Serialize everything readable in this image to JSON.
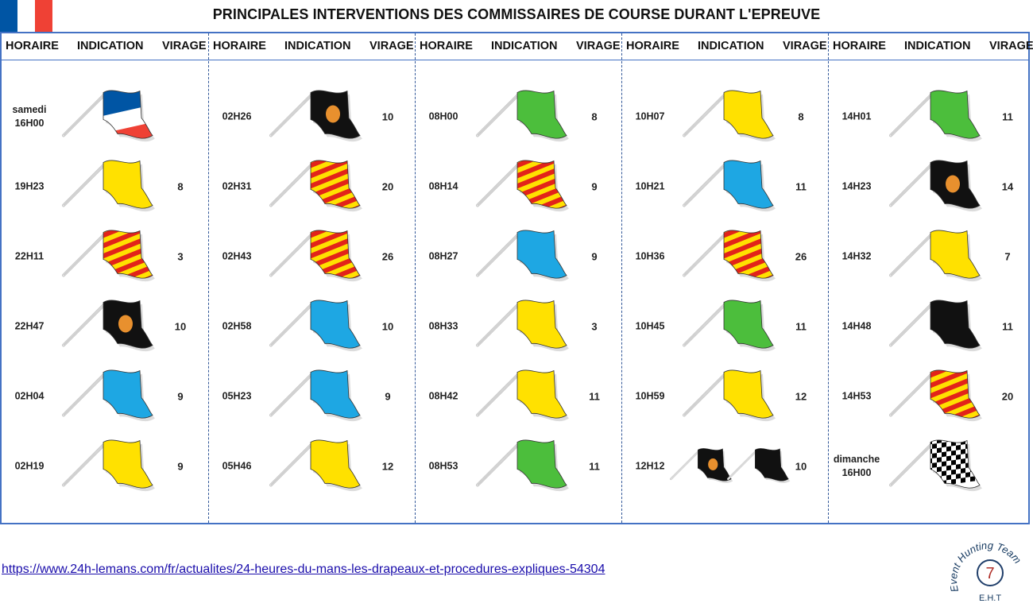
{
  "title": "PRINCIPALES INTERVENTIONS DES COMMISSAIRES DE COURSE DURANT L'EPREUVE",
  "headers": {
    "time": "HORAIRE",
    "indication": "INDICATION",
    "turn": "VIRAGE"
  },
  "columns": [
    {
      "rows": [
        {
          "time": "samedi\n16H00",
          "flags": [
            "french"
          ],
          "turn": ""
        },
        {
          "time": "19H23",
          "flags": [
            "yellow"
          ],
          "turn": "8"
        },
        {
          "time": "22H11",
          "flags": [
            "red-yellow-stripes"
          ],
          "turn": "3"
        },
        {
          "time": "22H47",
          "flags": [
            "black-orange-disc"
          ],
          "turn": "10"
        },
        {
          "time": "02H04",
          "flags": [
            "blue"
          ],
          "turn": "9"
        },
        {
          "time": "02H19",
          "flags": [
            "yellow"
          ],
          "turn": "9"
        }
      ]
    },
    {
      "rows": [
        {
          "time": "02H26",
          "flags": [
            "black-orange-disc"
          ],
          "turn": "10"
        },
        {
          "time": "02H31",
          "flags": [
            "red-yellow-stripes"
          ],
          "turn": "20"
        },
        {
          "time": "02H43",
          "flags": [
            "red-yellow-stripes"
          ],
          "turn": "26"
        },
        {
          "time": "02H58",
          "flags": [
            "blue"
          ],
          "turn": "10"
        },
        {
          "time": "05H23",
          "flags": [
            "blue"
          ],
          "turn": "9"
        },
        {
          "time": "05H46",
          "flags": [
            "yellow"
          ],
          "turn": "12"
        }
      ]
    },
    {
      "rows": [
        {
          "time": "08H00",
          "flags": [
            "green"
          ],
          "turn": "8"
        },
        {
          "time": "08H14",
          "flags": [
            "red-yellow-stripes"
          ],
          "turn": "9"
        },
        {
          "time": "08H27",
          "flags": [
            "blue"
          ],
          "turn": "9"
        },
        {
          "time": "08H33",
          "flags": [
            "yellow"
          ],
          "turn": "3"
        },
        {
          "time": "08H42",
          "flags": [
            "yellow"
          ],
          "turn": "11"
        },
        {
          "time": "08H53",
          "flags": [
            "green"
          ],
          "turn": "11"
        }
      ]
    },
    {
      "rows": [
        {
          "time": "10H07",
          "flags": [
            "yellow"
          ],
          "turn": "8"
        },
        {
          "time": "10H21",
          "flags": [
            "blue"
          ],
          "turn": "11"
        },
        {
          "time": "10H36",
          "flags": [
            "red-yellow-stripes"
          ],
          "turn": "26"
        },
        {
          "time": "10H45",
          "flags": [
            "green"
          ],
          "turn": "11"
        },
        {
          "time": "10H59",
          "flags": [
            "yellow"
          ],
          "turn": "12"
        },
        {
          "time": "12H12",
          "flags": [
            "black-orange-disc",
            "black"
          ],
          "turn": "10"
        }
      ]
    },
    {
      "rows": [
        {
          "time": "14H01",
          "flags": [
            "green"
          ],
          "turn": "11"
        },
        {
          "time": "14H23",
          "flags": [
            "black-orange-disc"
          ],
          "turn": "14"
        },
        {
          "time": "14H32",
          "flags": [
            "yellow"
          ],
          "turn": "7"
        },
        {
          "time": "14H48",
          "flags": [
            "black"
          ],
          "turn": "11"
        },
        {
          "time": "14H53",
          "flags": [
            "red-yellow-stripes"
          ],
          "turn": "20"
        },
        {
          "time": "dimanche\n16H00",
          "flags": [
            "checkered"
          ],
          "turn": ""
        }
      ]
    }
  ],
  "source_link": "https://www.24h-lemans.com/fr/actualites/24-heures-du-mans-les-drapeaux-et-procedures-expliques-54304",
  "logo": {
    "text": "Event Hunting Team",
    "number": "7",
    "abbr": "E.H.T"
  },
  "colors": {
    "frame": "#4472c4",
    "yellow": "#ffe100",
    "blue": "#1ea7e3",
    "green": "#4cbe3c",
    "red": "#e2231a",
    "black": "#111111",
    "orange": "#e8902e",
    "fr_blue": "#0055a4",
    "fr_red": "#ef4135"
  }
}
